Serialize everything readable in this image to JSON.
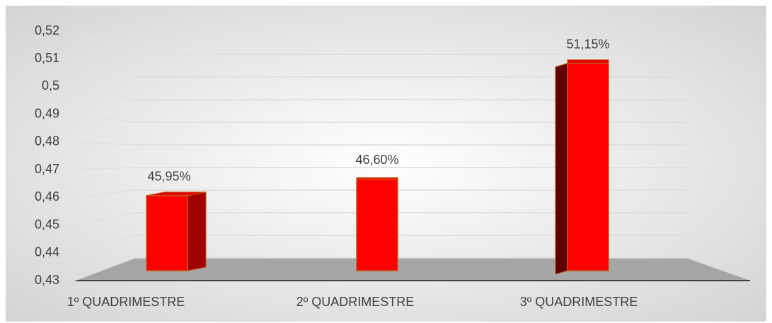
{
  "chart_data": {
    "type": "bar3d",
    "categories": [
      "1º QUADRIMESTRE",
      "2º QUADRIMESTRE",
      "3º QUADRIMESTRE"
    ],
    "values": [
      0.4595,
      0.466,
      0.5115
    ],
    "value_labels": [
      "45,95%",
      "46,60%",
      "51,15%"
    ],
    "color": "#ff0000",
    "ylim": [
      0.43,
      0.52
    ],
    "yticks": [
      {
        "value": 0.43,
        "label": "0,43"
      },
      {
        "value": 0.44,
        "label": "0,44"
      },
      {
        "value": 0.45,
        "label": "0,45"
      },
      {
        "value": 0.46,
        "label": "0,46"
      },
      {
        "value": 0.47,
        "label": "0,47"
      },
      {
        "value": 0.48,
        "label": "0,48"
      },
      {
        "value": 0.49,
        "label": "0,49"
      },
      {
        "value": 0.5,
        "label": "0,5"
      },
      {
        "value": 0.51,
        "label": "0,51"
      },
      {
        "value": 0.52,
        "label": "0,52"
      }
    ],
    "grid": true
  }
}
